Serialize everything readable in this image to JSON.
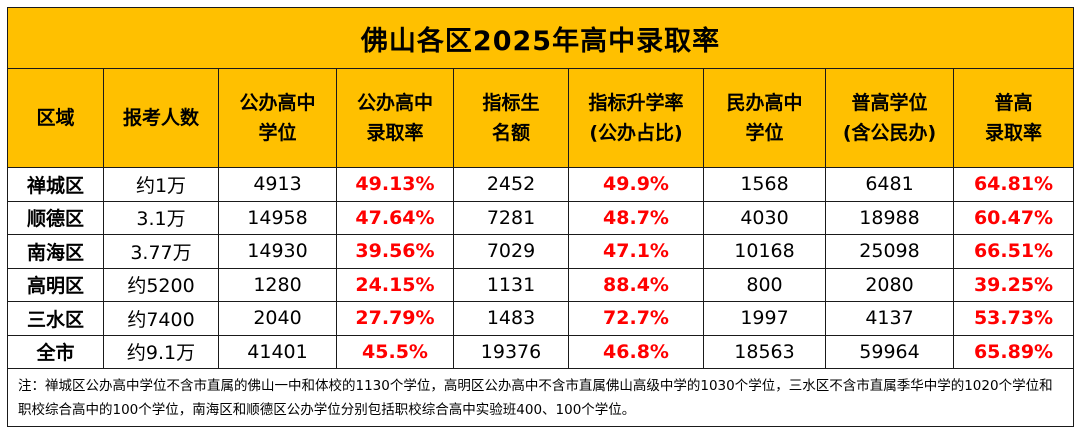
{
  "title": "佛山各区2025年高中录取率",
  "headers": [
    [
      "区域"
    ],
    [
      "报考人数"
    ],
    [
      "公办高中",
      "学位"
    ],
    [
      "公办高中",
      "录取率"
    ],
    [
      "指标生",
      "名额"
    ],
    [
      "指标升学率",
      "(公办占比)"
    ],
    [
      "民办高中",
      "学位"
    ],
    [
      "普高学位",
      "(含公民办)"
    ],
    [
      "普高",
      "录取率"
    ]
  ],
  "rows": [
    [
      "禅城区",
      "约1万",
      "4913",
      "49.13%",
      "2452",
      "49.9%",
      "1568",
      "6481",
      "64.81%"
    ],
    [
      "顺德区",
      "3.1万",
      "14958",
      "47.64%",
      "7281",
      "48.7%",
      "4030",
      "18988",
      "60.47%"
    ],
    [
      "南海区",
      "3.77万",
      "14930",
      "39.56%",
      "7029",
      "47.1%",
      "10168",
      "25098",
      "66.51%"
    ],
    [
      "高明区",
      "约5200",
      "1280",
      "24.15%",
      "1131",
      "88.4%",
      "800",
      "2080",
      "39.25%"
    ],
    [
      "三水区",
      "约7400",
      "2040",
      "27.79%",
      "1483",
      "72.7%",
      "1997",
      "4137",
      "53.73%"
    ],
    [
      "全市",
      "约9.1万",
      "41401",
      "45.5%",
      "19376",
      "46.8%",
      "18563",
      "59964",
      "65.89%"
    ]
  ],
  "note": "注：禅城区公办高中学位不含市直属的佛山一中和体校的1130个学位，高明区公办高中不含市直属佛山高级中学的1030个学位，三水区不含市直属季华中学的1020个学位和职校综合高中的100个学位，南海区和顺德区公办学位分别包括职校综合高中实验班400、100个学位。",
  "colors": {
    "header_bg": "#ffc000",
    "highlight": "#ff0000"
  }
}
